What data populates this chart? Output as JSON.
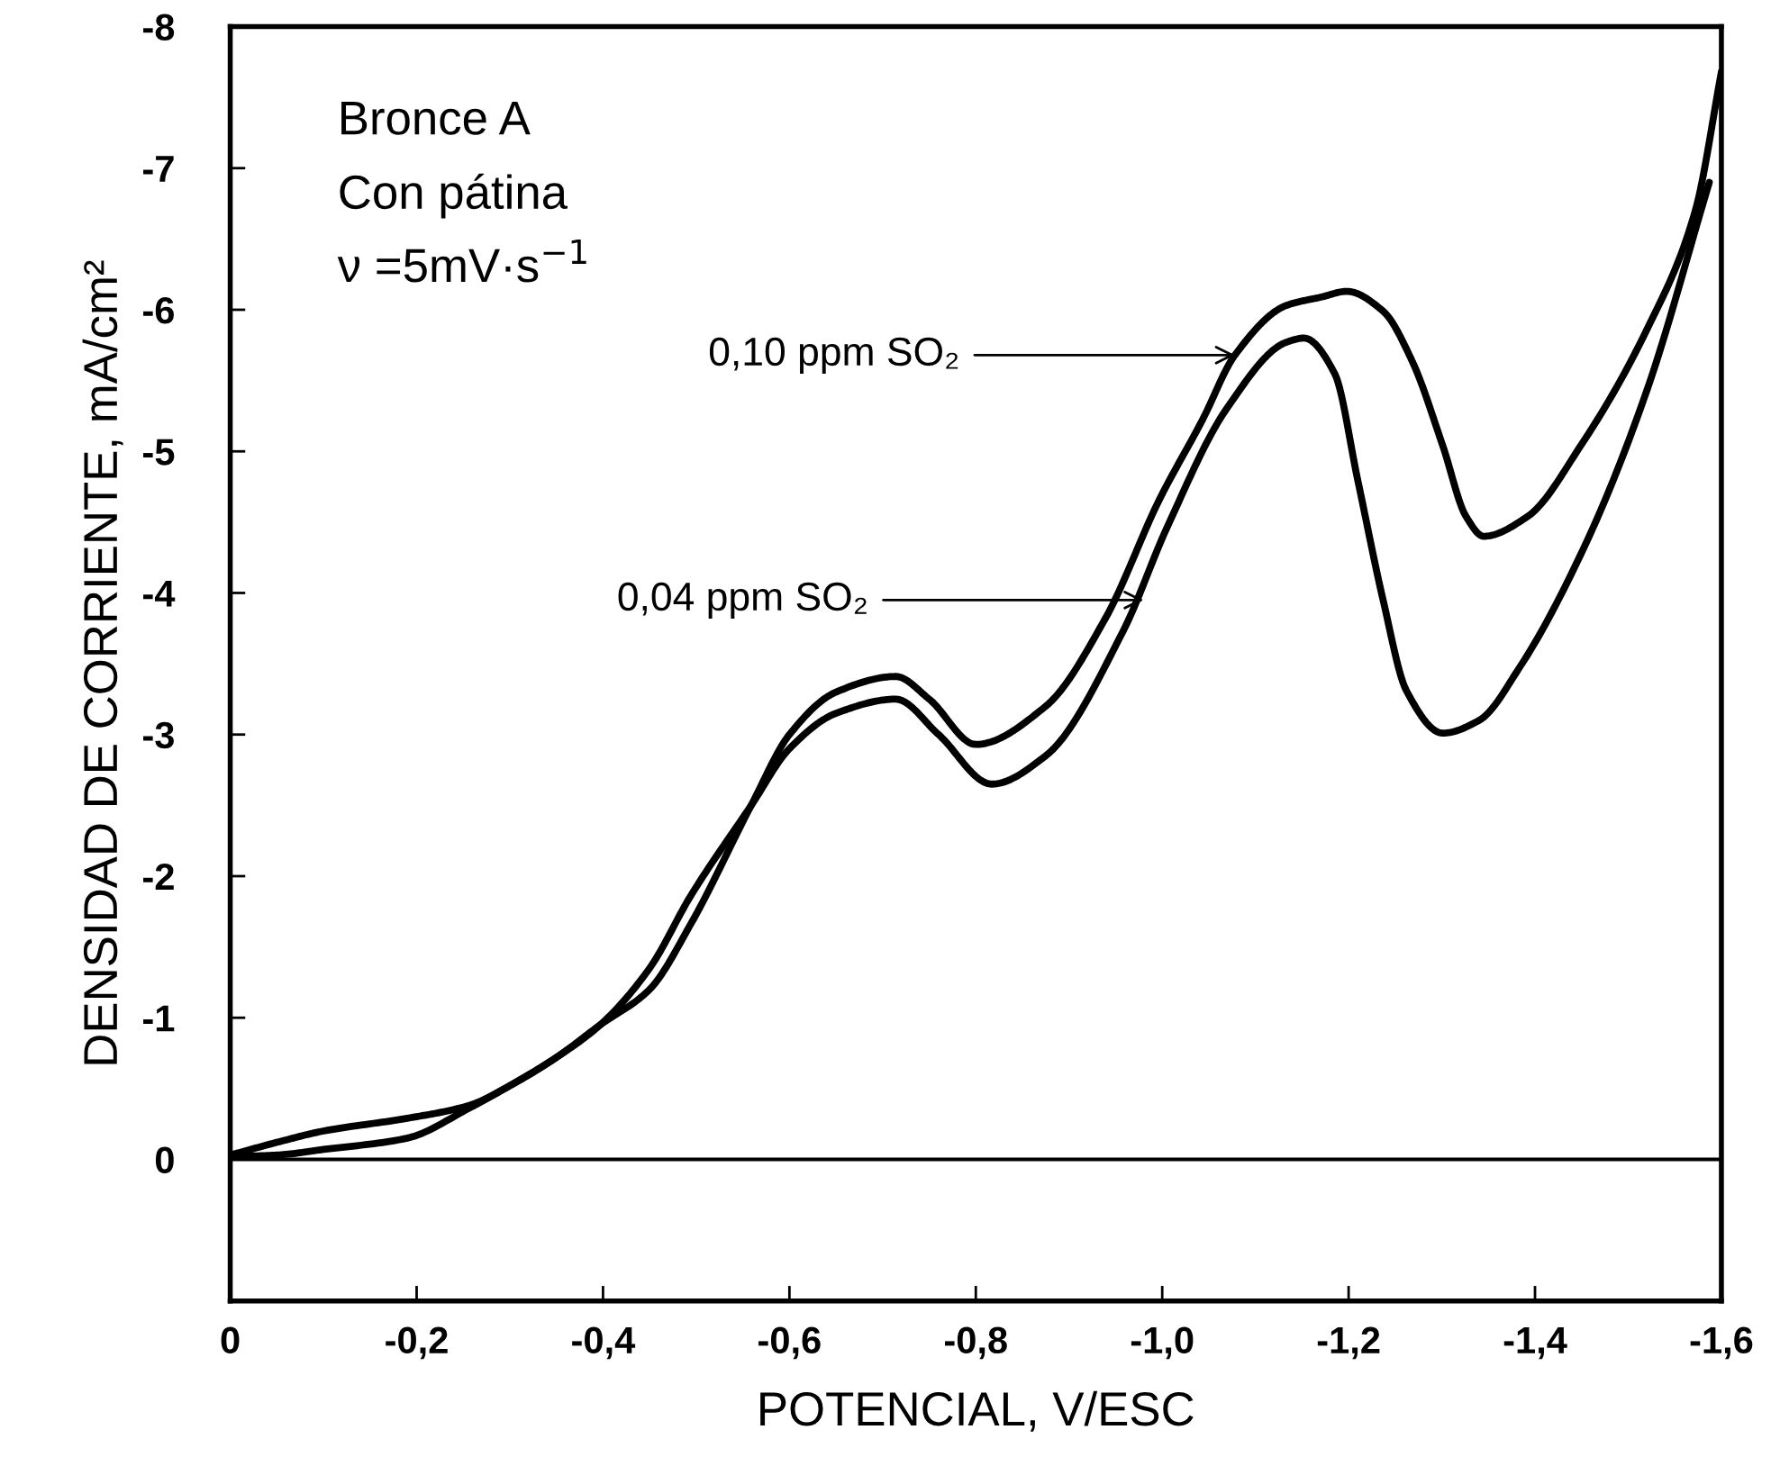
{
  "chart_data": {
    "type": "line",
    "xlabel": "POTENCIAL, V/ESC",
    "ylabel": "DENSIDAD DE CORRIENTE, mA/cm²",
    "xlim": [
      0,
      -1.6
    ],
    "xticks": [
      0,
      {
        "value": -0.2,
        "label": "-0,2"
      },
      {
        "value": -0.4,
        "label": "-0,4"
      },
      {
        "value": -0.6,
        "label": "-0,6"
      },
      {
        "value": -0.8,
        "label": "-0,8"
      },
      {
        "value": -1.0,
        "label": "-1,0"
      },
      {
        "value": -1.2,
        "label": "-1,2"
      },
      {
        "value": -1.4,
        "label": "-1,4"
      },
      {
        "value": -1.6,
        "label": "-1,6"
      }
    ],
    "ylim": [
      1,
      -8
    ],
    "yticks": [
      -8,
      -7,
      -6,
      -5,
      -4,
      -3,
      -2,
      -1,
      0
    ],
    "grid": false,
    "legend": false,
    "marker": "none",
    "line_style": "solid",
    "ref_lines": [
      {
        "axis": "y",
        "value": 0,
        "color": "#000000"
      }
    ],
    "annotations": [
      "Bronce A",
      "Con pátina",
      "ν =5mV·s$^{−1}$",
      {
        "text": "0,10 ppm SO₂",
        "x": -1.078,
        "y": -5.68
      },
      {
        "text": "0,04 ppm SO₂",
        "x": -0.98,
        "y": -3.95
      }
    ],
    "series": [
      {
        "color": "#000000",
        "x": [
          0,
          -0.05,
          -0.1,
          -0.19,
          -0.256,
          -0.3,
          -0.35,
          -0.397,
          -0.45,
          -0.494,
          -0.559,
          -0.6,
          -0.65,
          -0.714,
          -0.75,
          -0.8,
          -0.875,
          -0.939,
          -0.997,
          -1.043,
          -1.078,
          -1.133,
          -1.171,
          -1.198,
          -1.237,
          -1.268,
          -1.301,
          -1.326,
          -1.345,
          -1.392,
          -1.45,
          -1.52,
          -1.572,
          -1.6
        ],
        "values": [
          -0.03,
          -0.12,
          -0.2,
          -0.29,
          -0.38,
          -0.52,
          -0.72,
          -0.95,
          -1.2,
          -1.66,
          -2.5,
          -3.0,
          -3.3,
          -3.41,
          -3.25,
          -2.93,
          -3.2,
          -3.82,
          -4.66,
          -5.22,
          -5.68,
          -6.03,
          -6.09,
          -6.13,
          -5.99,
          -5.64,
          -5.04,
          -4.54,
          -4.4,
          -4.54,
          -5.05,
          -5.86,
          -6.7,
          -7.68
        ]
      },
      {
        "color": "#000000",
        "x": [
          0,
          -0.05,
          -0.1,
          -0.19,
          -0.256,
          -0.3,
          -0.35,
          -0.397,
          -0.45,
          -0.494,
          -0.559,
          -0.6,
          -0.65,
          -0.714,
          -0.76,
          -0.817,
          -0.875,
          -0.958,
          -1.005,
          -1.069,
          -1.133,
          -1.152,
          -1.185,
          -1.21,
          -1.237,
          -1.262,
          -1.301,
          -1.34,
          -1.384,
          -1.456,
          -1.52,
          -1.587
        ],
        "values": [
          -0.02,
          -0.03,
          -0.07,
          -0.15,
          -0.36,
          -0.52,
          -0.72,
          -0.95,
          -1.35,
          -1.86,
          -2.5,
          -2.9,
          -3.15,
          -3.25,
          -3.0,
          -2.65,
          -2.85,
          -3.73,
          -4.46,
          -5.3,
          -5.77,
          -5.8,
          -5.55,
          -4.79,
          -3.95,
          -3.31,
          -3.01,
          -3.1,
          -3.48,
          -4.37,
          -5.43,
          -6.9
        ]
      }
    ]
  }
}
